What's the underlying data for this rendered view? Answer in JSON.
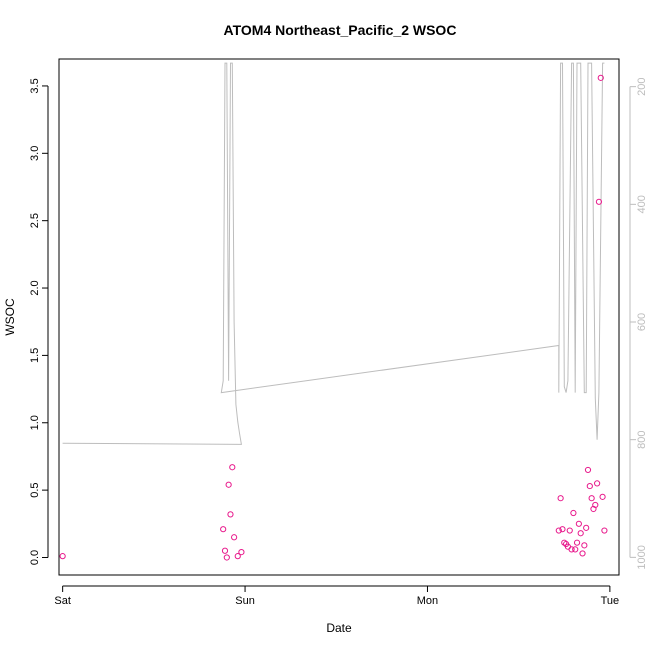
{
  "chart_data": {
    "type": "scatter",
    "title": "ATOM4 Northeast_Pacific_2 WSOC",
    "xlabel": "Date",
    "ylabel": "WSOC",
    "x_ticks": [
      "Sat",
      "Sun",
      "Mon",
      "Tue"
    ],
    "xlim": [
      -0.02,
      3.05
    ],
    "ylim": [
      -0.13,
      3.7
    ],
    "y_ticks": [
      0.0,
      0.5,
      1.0,
      1.5,
      2.0,
      2.5,
      3.0,
      3.5
    ],
    "y2_ticks": [
      200,
      400,
      600,
      800,
      1000
    ],
    "y2lim": [
      1030,
      153
    ],
    "y2_reversed": true,
    "grid": false,
    "colors": {
      "points": "#e8198c",
      "pressure_line": "#bdbdbd",
      "axis": "#000000",
      "axis_right": "#bdbdbd"
    },
    "series": [
      {
        "kind": "points",
        "x": [
          0.0,
          0.88,
          0.89,
          0.9,
          0.91,
          0.92,
          0.93,
          0.94,
          0.96,
          0.98,
          2.72,
          2.73,
          2.74,
          2.75,
          2.76,
          2.77,
          2.78,
          2.79,
          2.8,
          2.81,
          2.82,
          2.83,
          2.84,
          2.85,
          2.86,
          2.87,
          2.88,
          2.89,
          2.9,
          2.91,
          2.92,
          2.93,
          2.94,
          2.95,
          2.96,
          2.97
        ],
        "y": [
          0.01,
          0.21,
          0.05,
          0.0,
          0.54,
          0.32,
          0.67,
          0.15,
          0.01,
          0.04,
          0.2,
          0.44,
          0.21,
          0.11,
          0.1,
          0.08,
          0.2,
          0.06,
          0.33,
          0.06,
          0.11,
          0.25,
          0.18,
          0.03,
          0.09,
          0.22,
          0.65,
          0.53,
          0.44,
          0.36,
          0.39,
          0.55,
          2.64,
          3.56,
          0.45,
          0.2
        ]
      },
      {
        "kind": "line",
        "x": [
          0.0,
          0.98,
          0.97,
          0.96,
          0.95,
          0.94,
          0.93,
          0.92,
          0.91,
          0.9,
          0.89,
          0.88,
          0.87,
          2.72,
          2.72,
          2.73,
          2.74,
          2.75,
          2.76,
          2.77,
          2.79,
          2.8,
          2.81,
          2.82,
          2.84,
          2.86,
          2.87,
          2.88,
          2.9,
          2.92,
          2.93,
          2.94,
          2.96,
          2.97
        ],
        "y": [
          806,
          808,
          790,
          770,
          740,
          600,
          160,
          160,
          700,
          160,
          160,
          700,
          720,
          640,
          720,
          160,
          160,
          710,
          720,
          700,
          160,
          160,
          720,
          160,
          160,
          720,
          720,
          160,
          160,
          730,
          800,
          720,
          160,
          160
        ]
      }
    ]
  }
}
